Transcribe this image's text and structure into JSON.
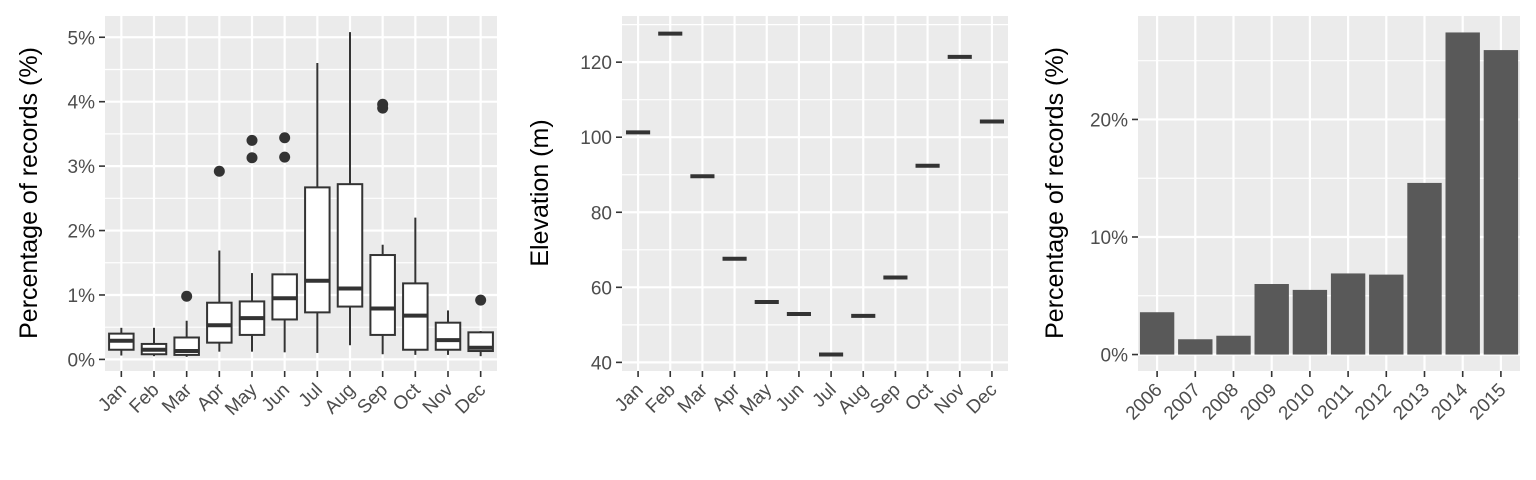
{
  "chart_data": [
    {
      "type": "box",
      "ylabel": "Percentage of records (%)",
      "categories": [
        "Jan",
        "Feb",
        "Mar",
        "Apr",
        "May",
        "Jun",
        "Jul",
        "Aug",
        "Sep",
        "Oct",
        "Nov",
        "Dec"
      ],
      "y_ticks": [
        0,
        1,
        2,
        3,
        4,
        5
      ],
      "y_tick_labels": [
        "0%",
        "1%",
        "2%",
        "3%",
        "4%",
        "5%"
      ],
      "ylim": [
        -0.18,
        5.33
      ],
      "grid": true,
      "boxes": [
        {
          "min": 0.06,
          "q1": 0.15,
          "median": 0.29,
          "q3": 0.4,
          "max": 0.49,
          "outliers": []
        },
        {
          "min": 0.05,
          "q1": 0.08,
          "median": 0.15,
          "q3": 0.24,
          "max": 0.49,
          "outliers": []
        },
        {
          "min": 0.04,
          "q1": 0.07,
          "median": 0.13,
          "q3": 0.34,
          "max": 0.6,
          "outliers": [
            0.98
          ]
        },
        {
          "min": 0.12,
          "q1": 0.26,
          "median": 0.53,
          "q3": 0.88,
          "max": 1.69,
          "outliers": [
            2.92
          ]
        },
        {
          "min": 0.12,
          "q1": 0.38,
          "median": 0.64,
          "q3": 0.9,
          "max": 1.34,
          "outliers": [
            3.13,
            3.4
          ]
        },
        {
          "min": 0.11,
          "q1": 0.62,
          "median": 0.95,
          "q3": 1.32,
          "max": 1.32,
          "outliers": [
            3.14,
            3.44
          ]
        },
        {
          "min": 0.1,
          "q1": 0.73,
          "median": 1.22,
          "q3": 2.67,
          "max": 4.6,
          "outliers": []
        },
        {
          "min": 0.22,
          "q1": 0.82,
          "median": 1.1,
          "q3": 2.72,
          "max": 5.08,
          "outliers": []
        },
        {
          "min": 0.08,
          "q1": 0.38,
          "median": 0.79,
          "q3": 1.62,
          "max": 1.78,
          "outliers": [
            3.9,
            3.96
          ]
        },
        {
          "min": 0.07,
          "q1": 0.15,
          "median": 0.68,
          "q3": 1.18,
          "max": 2.2,
          "outliers": []
        },
        {
          "min": 0.07,
          "q1": 0.15,
          "median": 0.3,
          "q3": 0.57,
          "max": 0.76,
          "outliers": []
        },
        {
          "min": 0.05,
          "q1": 0.13,
          "median": 0.18,
          "q3": 0.42,
          "max": 0.44,
          "outliers": [
            0.92
          ]
        }
      ]
    },
    {
      "type": "point",
      "ylabel": "Elevation (m)",
      "categories": [
        "Jan",
        "Feb",
        "Mar",
        "Apr",
        "May",
        "Jun",
        "Jul",
        "Aug",
        "Sep",
        "Oct",
        "Nov",
        "Dec"
      ],
      "values": [
        101.3,
        127.6,
        89.6,
        67.6,
        56.1,
        52.9,
        42.1,
        52.4,
        62.6,
        92.4,
        121.4,
        104.2
      ],
      "y_ticks": [
        40,
        60,
        80,
        100,
        120
      ],
      "y_tick_labels": [
        "40",
        "60",
        "80",
        "100",
        "120"
      ],
      "ylim": [
        37.7,
        132.3
      ],
      "grid": true
    },
    {
      "type": "bar",
      "ylabel": "Percentage of records (%)",
      "categories": [
        "2006",
        "2007",
        "2008",
        "2009",
        "2010",
        "2011",
        "2012",
        "2013",
        "2014",
        "2015"
      ],
      "values": [
        3.6,
        1.3,
        1.6,
        6.0,
        5.5,
        6.9,
        6.8,
        14.6,
        27.4,
        25.9
      ],
      "y_ticks": [
        0,
        10,
        20
      ],
      "y_tick_labels": [
        "0%",
        "10%",
        "20%"
      ],
      "ylim": [
        -1.4,
        28.8
      ],
      "grid": true
    }
  ],
  "colors": {
    "panel_background": "#ebebeb",
    "grid_line": "#ffffff",
    "bar_fill": "#595959",
    "box_fill": "#ffffff",
    "box_line": "#333333",
    "point_color": "#333333",
    "tick_text": "#4d4d4d",
    "title_text": "#000000"
  }
}
